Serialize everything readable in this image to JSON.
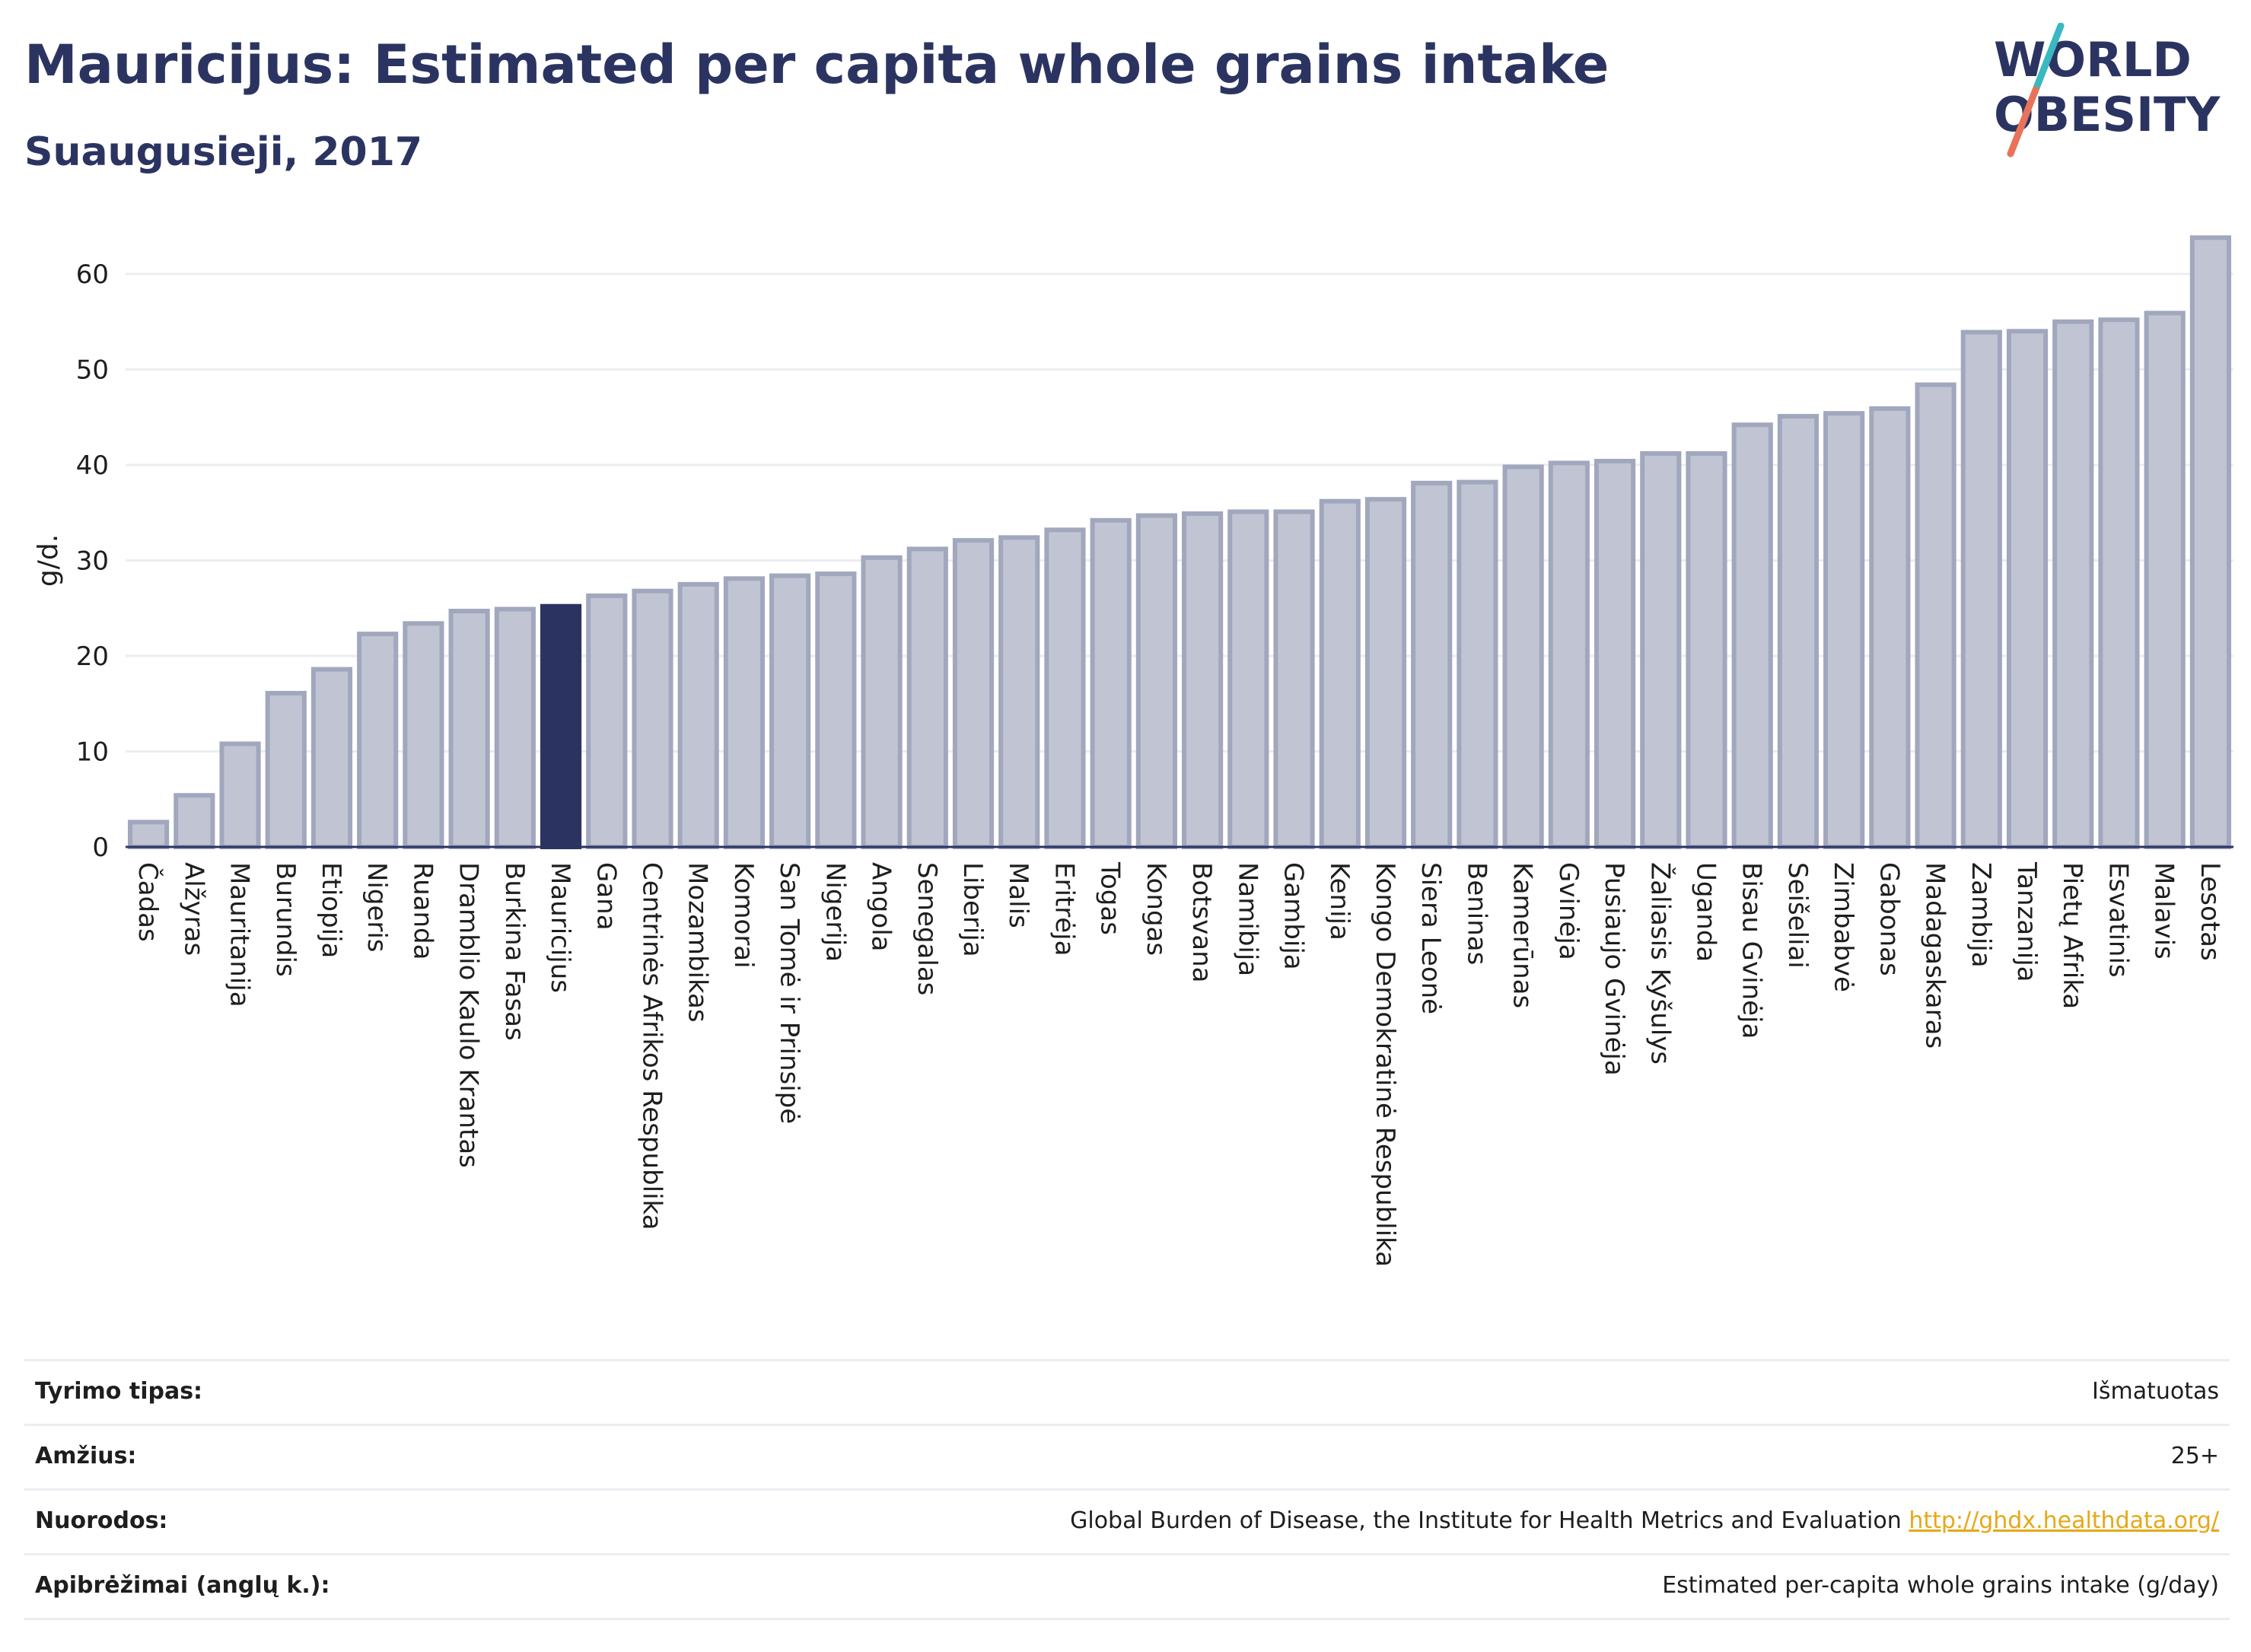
{
  "title": "Mauricijus: Estimated per capita whole grains intake",
  "subtitle": "Suaugusieji, 2017",
  "logo": {
    "line1": "WORLD",
    "line2": "OBESITY",
    "colors": {
      "text": "#2b3461",
      "slash_top": "#3ab8c2",
      "slash_bottom": "#e8735a"
    }
  },
  "colors": {
    "bar": "#c1c5d3",
    "bar_stroke": "#a1a7bd",
    "highlight": "#2b3461",
    "grid": "#ebedf2",
    "axis": "#2b3461"
  },
  "chart_data": {
    "type": "bar",
    "ylabel": "g/d.",
    "ylim": [
      0,
      65
    ],
    "yticks": [
      0,
      10,
      20,
      30,
      40,
      50,
      60
    ],
    "grid": true,
    "highlight": "Mauricijus",
    "categories": [
      "Čadas",
      "Alžyras",
      "Mauritanija",
      "Burundis",
      "Etiopija",
      "Nigeris",
      "Ruanda",
      "Dramblio Kaulo Krantas",
      "Burkina Fasas",
      "Mauricijus",
      "Gana",
      "Centrinės Afrikos Respublika",
      "Mozambikas",
      "Komorai",
      "San Tomė ir Prinsipė",
      "Nigerija",
      "Angola",
      "Senegalas",
      "Liberija",
      "Malis",
      "Eritrėja",
      "Togas",
      "Kongas",
      "Botsvana",
      "Namibija",
      "Gambija",
      "Kenija",
      "Kongo Demokratinė Respublika",
      "Siera Leonė",
      "Beninas",
      "Kamerūnas",
      "Gvinėja",
      "Pusiaujo Gvinėja",
      "Žaliasis Kyšulys",
      "Uganda",
      "Bisau Gvinėja",
      "Seišeliai",
      "Zimbabvė",
      "Gabonas",
      "Madagaskaras",
      "Zambija",
      "Tanzanija",
      "Pietų Afrika",
      "Esvatinis",
      "Malavis",
      "Lesotas"
    ],
    "values": [
      2.6,
      5.4,
      10.8,
      16.1,
      18.6,
      22.3,
      23.4,
      24.7,
      24.9,
      25.2,
      26.3,
      26.8,
      27.5,
      28.1,
      28.4,
      28.6,
      30.3,
      31.2,
      32.1,
      32.4,
      33.2,
      34.2,
      34.7,
      34.9,
      35.1,
      35.1,
      36.2,
      36.4,
      38.1,
      38.2,
      39.8,
      40.2,
      40.4,
      41.2,
      41.2,
      44.2,
      45.1,
      45.4,
      45.9,
      48.4,
      53.9,
      54.0,
      55.0,
      55.2,
      55.9,
      63.8
    ]
  },
  "meta": [
    {
      "label": "Tyrimo tipas:",
      "value": "Išmatuotas"
    },
    {
      "label": "Amžius:",
      "value": "25+"
    },
    {
      "label": "Nuorodos:",
      "value": "Global Burden of Disease, the Institute for Health Metrics and Evaluation",
      "link": "http://ghdx.healthdata.org/"
    },
    {
      "label": "Apibrėžimai (anglų k.):",
      "value": "Estimated per-capita whole grains intake (g/day)"
    }
  ]
}
